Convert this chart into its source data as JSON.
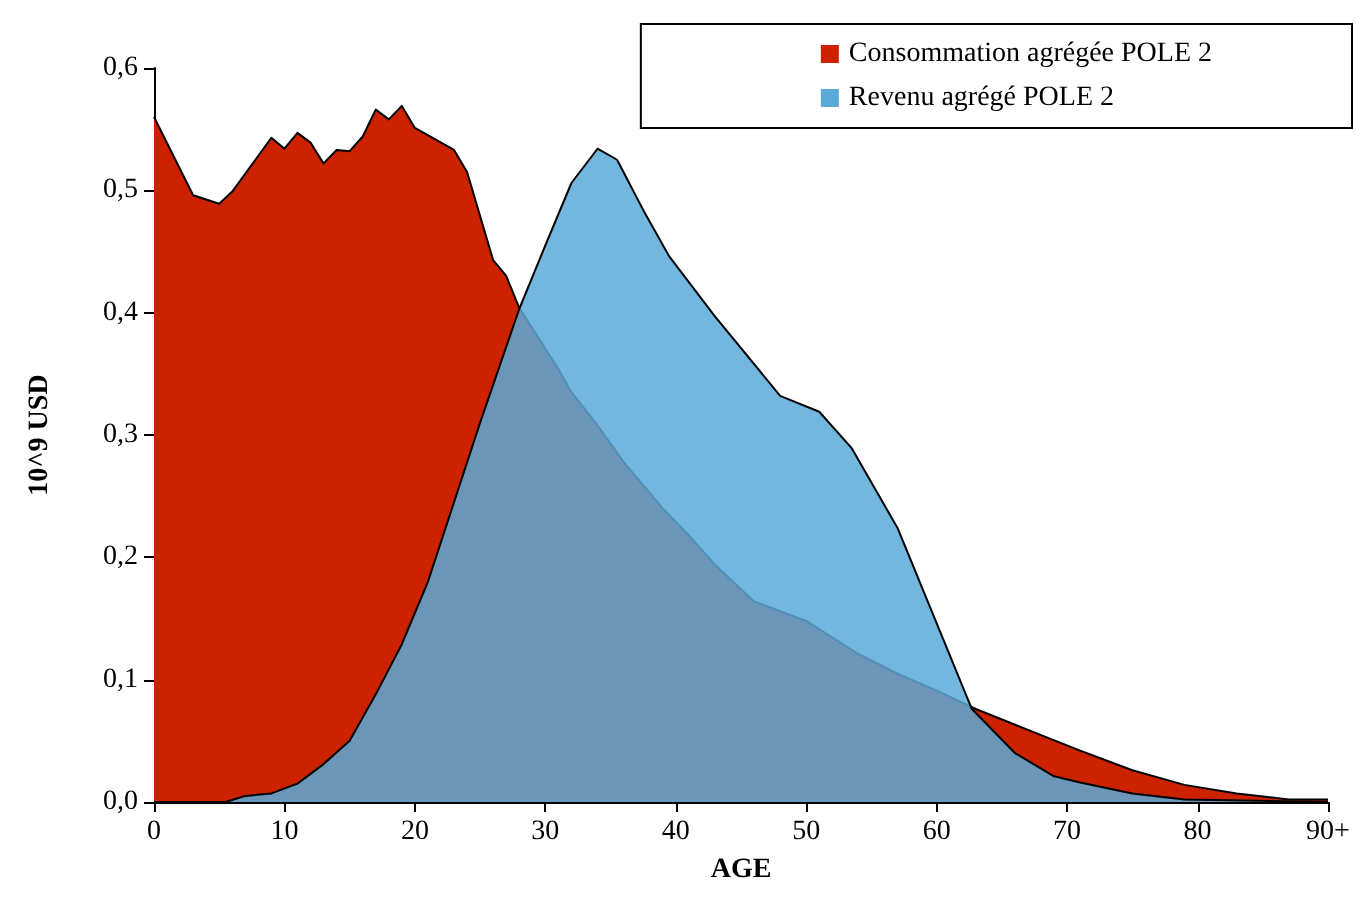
{
  "chart_data": {
    "type": "area",
    "xlabel": "AGE",
    "ylabel": "10^9 USD",
    "legend": "top right",
    "grid": false,
    "xlim": [
      0,
      90
    ],
    "xticks": [
      0,
      10,
      20,
      30,
      40,
      50,
      60,
      70,
      80,
      {
        "value": 90,
        "label": "90+"
      }
    ],
    "ylim": [
      0,
      0.6
    ],
    "yticks": [
      {
        "value": 0,
        "label": "0,0"
      },
      {
        "value": 0.1,
        "label": "0,1"
      },
      {
        "value": 0.2,
        "label": "0,2"
      },
      {
        "value": 0.3,
        "label": "0,3"
      },
      {
        "value": 0.4,
        "label": "0,4"
      },
      {
        "value": 0.5,
        "label": "0,5"
      },
      {
        "value": 0.6,
        "label": "0,6"
      }
    ],
    "series": [
      {
        "name": "Consommation agrégée POLE 2",
        "color": "#cc2200",
        "x": [
          0,
          3,
          5,
          6,
          9,
          10,
          11,
          12,
          13,
          14,
          15,
          16,
          17,
          18,
          19,
          20,
          23,
          24,
          26,
          27,
          28,
          31,
          32,
          34,
          36,
          39,
          41,
          43,
          46,
          50,
          54,
          57,
          60,
          63,
          67,
          71,
          75,
          79,
          83,
          87,
          90
        ],
        "values": [
          0.56,
          0.496,
          0.489,
          0.499,
          0.543,
          0.534,
          0.547,
          0.539,
          0.522,
          0.533,
          0.532,
          0.544,
          0.566,
          0.558,
          0.569,
          0.551,
          0.533,
          0.515,
          0.443,
          0.43,
          0.404,
          0.354,
          0.335,
          0.308,
          0.278,
          0.24,
          0.218,
          0.194,
          0.164,
          0.148,
          0.121,
          0.105,
          0.091,
          0.076,
          0.059,
          0.042,
          0.026,
          0.014,
          0.007,
          0.002,
          0.002
        ]
      },
      {
        "name": "Revenu agrégé POLE 2",
        "color": "#5aaad8",
        "x": [
          0,
          5.5,
          7,
          9,
          11,
          13,
          15,
          17,
          19,
          21,
          23,
          25,
          28,
          30,
          32,
          34,
          35.5,
          37.5,
          39.5,
          43,
          48,
          51,
          53.5,
          57,
          59.5,
          62.7,
          66,
          69,
          71,
          75,
          79,
          90
        ],
        "values": [
          0,
          0,
          0.005,
          0.007,
          0.015,
          0.031,
          0.05,
          0.088,
          0.129,
          0.18,
          0.245,
          0.31,
          0.403,
          0.455,
          0.506,
          0.534,
          0.525,
          0.484,
          0.446,
          0.397,
          0.332,
          0.319,
          0.289,
          0.224,
          0.159,
          0.076,
          0.04,
          0.021,
          0.016,
          0.007,
          0.002,
          0
        ]
      }
    ]
  }
}
